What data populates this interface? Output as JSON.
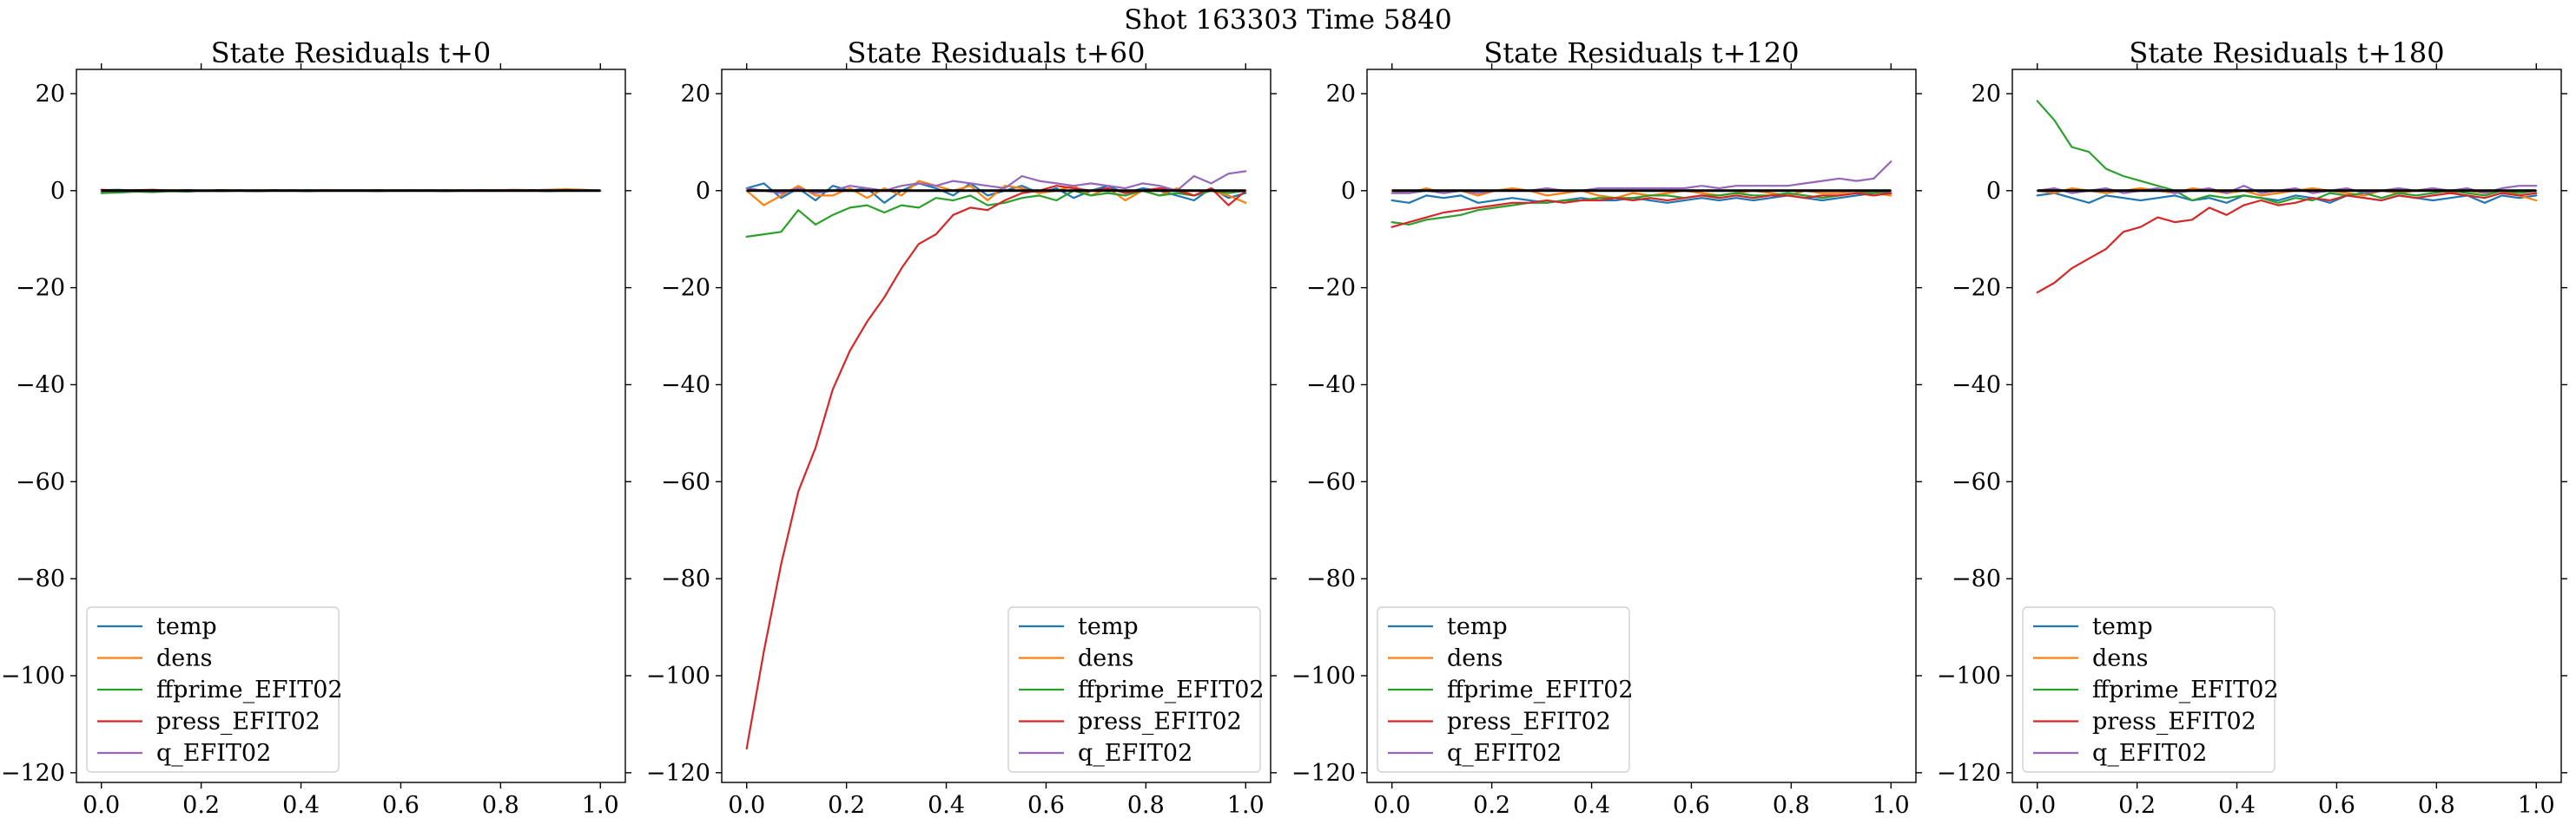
{
  "figure": {
    "suptitle": "Shot 163303   Time 5840"
  },
  "colors": {
    "temp": "#1f77b4",
    "dens": "#ff7f0e",
    "ffprime_EFIT02": "#2ca02c",
    "press_EFIT02": "#d62728",
    "q_EFIT02": "#9467bd",
    "zero": "#000000"
  },
  "chart_data": [
    {
      "type": "line",
      "title": "State Residuals t+0",
      "xlim": [
        -0.05,
        1.05
      ],
      "ylim": [
        -122,
        25
      ],
      "xticks": [
        0.0,
        0.2,
        0.4,
        0.6,
        0.8,
        1.0
      ],
      "xtick_labels": [
        "0.0",
        "0.2",
        "0.4",
        "0.6",
        "0.8",
        "1.0"
      ],
      "yticks": [
        20,
        0,
        -20,
        -40,
        -60,
        -80,
        -100,
        -120
      ],
      "ytick_labels": [
        "20",
        "0",
        "−20",
        "−40",
        "−60",
        "−80",
        "−100",
        "−120"
      ],
      "legend_position": "lower-left",
      "x": [
        0.0,
        0.03448,
        0.06897,
        0.10345,
        0.13793,
        0.17241,
        0.2069,
        0.24138,
        0.27586,
        0.31034,
        0.34483,
        0.37931,
        0.41379,
        0.44828,
        0.48276,
        0.51724,
        0.55172,
        0.58621,
        0.62069,
        0.65517,
        0.68966,
        0.72414,
        0.75862,
        0.7931,
        0.82759,
        0.86207,
        0.89655,
        0.93103,
        0.96552,
        1.0
      ],
      "series": [
        {
          "name": "temp",
          "values": [
            0.1,
            0.2,
            0.0,
            0.1,
            0.0,
            0.1,
            0.0,
            0.1,
            0.0,
            -0.1,
            0.1,
            0.0,
            0.1,
            0.0,
            0.0,
            0.1,
            0.0,
            0.0,
            0.1,
            0.0,
            0.1,
            0.0,
            0.0,
            0.1,
            0.0,
            0.0,
            0.1,
            0.0,
            0.1,
            0.0
          ]
        },
        {
          "name": "dens",
          "values": [
            0.0,
            -0.1,
            0.1,
            0.0,
            0.1,
            0.0,
            0.0,
            0.1,
            0.0,
            0.1,
            0.0,
            0.1,
            0.0,
            0.1,
            0.0,
            0.1,
            0.0,
            0.1,
            0.1,
            0.0,
            0.1,
            0.0,
            0.1,
            0.1,
            0.2,
            0.1,
            0.2,
            0.3,
            0.2,
            0.0
          ]
        },
        {
          "name": "ffprime_EFIT02",
          "values": [
            -0.5,
            -0.4,
            -0.2,
            -0.3,
            -0.1,
            -0.2,
            0.0,
            -0.1,
            0.0,
            -0.1,
            0.0,
            0.0,
            -0.1,
            0.0,
            0.0,
            0.0,
            -0.1,
            0.0,
            0.0,
            0.0,
            -0.1,
            0.0,
            0.0,
            0.0,
            0.0,
            0.0,
            -0.1,
            0.0,
            0.0,
            0.0
          ]
        },
        {
          "name": "press_EFIT02",
          "values": [
            0.2,
            0.0,
            0.1,
            0.2,
            0.0,
            0.1,
            0.0,
            0.1,
            0.0,
            0.0,
            0.1,
            0.0,
            0.0,
            0.1,
            0.0,
            0.0,
            0.1,
            0.0,
            0.0,
            0.1,
            0.0,
            0.0,
            0.1,
            0.0,
            0.0,
            0.1,
            0.0,
            0.1,
            0.0,
            0.0
          ]
        },
        {
          "name": "q_EFIT02",
          "values": [
            -0.1,
            0.0,
            -0.1,
            0.1,
            0.0,
            0.1,
            -0.1,
            0.0,
            0.1,
            0.0,
            0.0,
            0.1,
            0.0,
            0.0,
            0.1,
            0.0,
            0.1,
            0.0,
            0.1,
            0.0,
            0.0,
            0.1,
            0.0,
            0.0,
            0.1,
            0.0,
            0.1,
            0.0,
            0.1,
            0.0
          ]
        }
      ]
    },
    {
      "type": "line",
      "title": "State Residuals t+60",
      "xlim": [
        -0.05,
        1.05
      ],
      "ylim": [
        -122,
        25
      ],
      "xticks": [
        0.0,
        0.2,
        0.4,
        0.6,
        0.8,
        1.0
      ],
      "xtick_labels": [
        "0.0",
        "0.2",
        "0.4",
        "0.6",
        "0.8",
        "1.0"
      ],
      "yticks": [
        20,
        0,
        -20,
        -40,
        -60,
        -80,
        -100,
        -120
      ],
      "ytick_labels": [
        "20",
        "0",
        "−20",
        "−40",
        "−60",
        "−80",
        "−100",
        "−120"
      ],
      "legend_position": "lower-right",
      "x": [
        0.0,
        0.03448,
        0.06897,
        0.10345,
        0.13793,
        0.17241,
        0.2069,
        0.24138,
        0.27586,
        0.31034,
        0.34483,
        0.37931,
        0.41379,
        0.44828,
        0.48276,
        0.51724,
        0.55172,
        0.58621,
        0.62069,
        0.65517,
        0.68966,
        0.72414,
        0.75862,
        0.7931,
        0.82759,
        0.86207,
        0.89655,
        0.93103,
        0.96552,
        1.0
      ],
      "series": [
        {
          "name": "temp",
          "values": [
            0.5,
            1.5,
            -1.5,
            0.5,
            -2.0,
            1.0,
            0.0,
            0.5,
            -2.5,
            0.0,
            1.5,
            0.5,
            -1.0,
            1.5,
            -1.0,
            0.0,
            1.0,
            -0.5,
            0.5,
            -1.5,
            0.0,
            1.0,
            -0.5,
            0.5,
            0.0,
            -1.0,
            -2.0,
            0.5,
            -1.5,
            -0.5
          ]
        },
        {
          "name": "dens",
          "values": [
            0.0,
            -3.0,
            -1.0,
            1.0,
            -1.0,
            -1.0,
            0.5,
            -1.5,
            0.5,
            -1.0,
            2.0,
            1.0,
            0.0,
            1.0,
            -2.0,
            1.0,
            0.5,
            -0.5,
            0.0,
            1.0,
            -1.0,
            0.5,
            -2.0,
            0.0,
            -1.0,
            0.5,
            -1.0,
            0.0,
            -1.0,
            -2.5
          ]
        },
        {
          "name": "ffprime_EFIT02",
          "values": [
            -9.5,
            -9.0,
            -8.5,
            -4.0,
            -7.0,
            -5.0,
            -3.5,
            -3.0,
            -4.5,
            -3.0,
            -3.5,
            -1.5,
            -2.0,
            -1.0,
            -3.0,
            -2.5,
            -1.5,
            -1.0,
            -2.0,
            0.0,
            -1.0,
            -0.5,
            -1.0,
            0.0,
            -1.0,
            -0.5,
            -1.0,
            0.0,
            -0.5,
            0.0
          ]
        },
        {
          "name": "press_EFIT02",
          "values": [
            -115,
            -95,
            -77,
            -62,
            -53,
            -41,
            -33,
            -27,
            -22,
            -16,
            -11,
            -9,
            -5,
            -3.5,
            -4,
            -2,
            -0.5,
            0.0,
            1.0,
            0.5,
            0.0,
            0.5,
            -0.5,
            0.0,
            0.5,
            0.0,
            -1.0,
            0.5,
            -3.0,
            0.0
          ]
        },
        {
          "name": "q_EFIT02",
          "values": [
            0.5,
            0.0,
            -0.5,
            0.5,
            -0.5,
            0.0,
            1.0,
            0.5,
            0.0,
            1.0,
            1.5,
            1.0,
            2.0,
            1.5,
            1.0,
            0.5,
            3.0,
            2.0,
            1.5,
            1.0,
            1.5,
            1.0,
            0.5,
            1.5,
            1.0,
            0.0,
            3.0,
            1.5,
            3.5,
            4.0
          ]
        }
      ]
    },
    {
      "type": "line",
      "title": "State Residuals t+120",
      "xlim": [
        -0.05,
        1.05
      ],
      "ylim": [
        -122,
        25
      ],
      "xticks": [
        0.0,
        0.2,
        0.4,
        0.6,
        0.8,
        1.0
      ],
      "xtick_labels": [
        "0.0",
        "0.2",
        "0.4",
        "0.6",
        "0.8",
        "1.0"
      ],
      "yticks": [
        20,
        0,
        -20,
        -40,
        -60,
        -80,
        -100,
        -120
      ],
      "ytick_labels": [
        "20",
        "0",
        "−20",
        "−40",
        "−60",
        "−80",
        "−100",
        "−120"
      ],
      "legend_position": "lower-left",
      "x": [
        0.0,
        0.03448,
        0.06897,
        0.10345,
        0.13793,
        0.17241,
        0.2069,
        0.24138,
        0.27586,
        0.31034,
        0.34483,
        0.37931,
        0.41379,
        0.44828,
        0.48276,
        0.51724,
        0.55172,
        0.58621,
        0.62069,
        0.65517,
        0.68966,
        0.72414,
        0.75862,
        0.7931,
        0.82759,
        0.86207,
        0.89655,
        0.93103,
        0.96552,
        1.0
      ],
      "series": [
        {
          "name": "temp",
          "values": [
            -2.0,
            -2.5,
            -1.0,
            -1.5,
            -1.0,
            -2.5,
            -2.0,
            -1.5,
            -2.0,
            -2.5,
            -2.0,
            -1.5,
            -2.0,
            -2.0,
            -1.5,
            -2.0,
            -2.5,
            -2.0,
            -1.5,
            -2.0,
            -1.5,
            -2.0,
            -1.5,
            -1.0,
            -1.5,
            -2.0,
            -1.5,
            -1.0,
            -0.5,
            -0.5
          ]
        },
        {
          "name": "dens",
          "values": [
            0.0,
            -0.5,
            0.5,
            -0.5,
            0.0,
            -1.0,
            0.0,
            0.5,
            0.0,
            -1.0,
            -0.5,
            0.0,
            -1.0,
            -1.5,
            -0.5,
            -1.0,
            -0.5,
            0.0,
            -0.5,
            -1.0,
            -0.5,
            0.0,
            -0.5,
            -1.0,
            0.0,
            -0.5,
            -0.5,
            0.0,
            -0.5,
            -1.0
          ]
        },
        {
          "name": "ffprime_EFIT02",
          "values": [
            -6.5,
            -7.0,
            -6.0,
            -5.5,
            -5.0,
            -4.0,
            -3.5,
            -3.0,
            -2.5,
            -2.5,
            -2.0,
            -2.0,
            -1.5,
            -1.5,
            -1.5,
            -1.0,
            -1.0,
            -1.5,
            -1.0,
            -1.0,
            -0.5,
            -1.0,
            -1.0,
            -0.5,
            -1.0,
            -1.5,
            -1.0,
            -0.5,
            -0.5,
            0.0
          ]
        },
        {
          "name": "press_EFIT02",
          "values": [
            -7.5,
            -6.5,
            -5.5,
            -4.5,
            -4.0,
            -3.5,
            -3.0,
            -2.5,
            -2.5,
            -2.0,
            -2.5,
            -2.0,
            -2.0,
            -1.5,
            -2.0,
            -1.5,
            -2.0,
            -1.5,
            -1.0,
            -1.5,
            -1.0,
            -1.5,
            -1.0,
            -1.0,
            -1.5,
            -1.0,
            -1.0,
            -0.5,
            -1.0,
            -0.5
          ]
        },
        {
          "name": "q_EFIT02",
          "values": [
            -0.5,
            -0.5,
            0.0,
            -0.5,
            0.0,
            -0.5,
            0.0,
            0.0,
            0.0,
            0.5,
            0.0,
            0.0,
            0.5,
            0.5,
            0.5,
            0.5,
            0.5,
            0.5,
            1.0,
            0.5,
            1.0,
            1.0,
            1.0,
            1.0,
            1.5,
            2.0,
            2.5,
            2.0,
            2.5,
            6.0
          ]
        }
      ]
    },
    {
      "type": "line",
      "title": "State Residuals t+180",
      "xlim": [
        -0.05,
        1.05
      ],
      "ylim": [
        -122,
        25
      ],
      "xticks": [
        0.0,
        0.2,
        0.4,
        0.6,
        0.8,
        1.0
      ],
      "xtick_labels": [
        "0.0",
        "0.2",
        "0.4",
        "0.6",
        "0.8",
        "1.0"
      ],
      "yticks": [
        20,
        0,
        -20,
        -40,
        -60,
        -80,
        -100,
        -120
      ],
      "ytick_labels": [
        "20",
        "0",
        "−20",
        "−40",
        "−60",
        "−80",
        "−100",
        "−120"
      ],
      "legend_position": "lower-left",
      "x": [
        0.0,
        0.03448,
        0.06897,
        0.10345,
        0.13793,
        0.17241,
        0.2069,
        0.24138,
        0.27586,
        0.31034,
        0.34483,
        0.37931,
        0.41379,
        0.44828,
        0.48276,
        0.51724,
        0.55172,
        0.58621,
        0.62069,
        0.65517,
        0.68966,
        0.72414,
        0.75862,
        0.7931,
        0.82759,
        0.86207,
        0.89655,
        0.93103,
        0.96552,
        1.0
      ],
      "series": [
        {
          "name": "temp",
          "values": [
            -1.0,
            -0.5,
            -1.5,
            -2.5,
            -1.0,
            -1.5,
            -2.0,
            -1.5,
            -1.0,
            -2.0,
            -1.5,
            -2.5,
            -1.0,
            -1.5,
            -2.0,
            -1.0,
            -1.5,
            -2.5,
            -1.0,
            -1.5,
            -2.0,
            -1.0,
            -1.5,
            -2.0,
            -1.5,
            -1.0,
            -2.5,
            -1.0,
            -1.5,
            -1.0
          ]
        },
        {
          "name": "dens",
          "values": [
            0.0,
            -0.5,
            0.5,
            0.0,
            -0.5,
            0.0,
            0.5,
            0.0,
            -0.5,
            0.5,
            0.0,
            -0.5,
            0.0,
            -1.0,
            -0.5,
            0.0,
            0.5,
            0.0,
            -0.5,
            -1.0,
            0.0,
            -0.5,
            0.0,
            0.5,
            -0.5,
            0.0,
            -0.5,
            0.0,
            -1.0,
            -2.0
          ]
        },
        {
          "name": "ffprime_EFIT02",
          "values": [
            18.5,
            14.5,
            9.0,
            8.0,
            4.5,
            3.0,
            2.0,
            1.0,
            0.0,
            -2.0,
            -1.0,
            -1.5,
            -1.0,
            -1.5,
            -2.5,
            -1.5,
            -2.0,
            -0.5,
            -1.0,
            -0.5,
            -1.5,
            -0.5,
            -1.0,
            -0.5,
            0.0,
            -0.5,
            -1.0,
            0.0,
            -0.5,
            0.0
          ]
        },
        {
          "name": "press_EFIT02",
          "values": [
            -21.0,
            -19.0,
            -16.0,
            -14.0,
            -12.0,
            -8.5,
            -7.5,
            -5.5,
            -6.5,
            -6.0,
            -3.5,
            -5.0,
            -3.0,
            -2.0,
            -3.0,
            -2.5,
            -1.5,
            -2.0,
            -1.0,
            -1.5,
            -2.0,
            -1.0,
            -1.5,
            -1.0,
            -0.5,
            -1.0,
            -1.5,
            -0.5,
            -1.0,
            -0.5
          ]
        },
        {
          "name": "q_EFIT02",
          "values": [
            0.0,
            0.5,
            -0.5,
            0.0,
            0.5,
            -0.5,
            0.0,
            0.5,
            -0.5,
            0.0,
            0.5,
            -0.5,
            1.0,
            -0.5,
            0.0,
            0.5,
            -0.5,
            0.0,
            0.5,
            -0.5,
            0.0,
            0.5,
            0.0,
            0.5,
            0.0,
            0.5,
            -0.5,
            0.5,
            1.0,
            1.0
          ]
        }
      ]
    }
  ]
}
